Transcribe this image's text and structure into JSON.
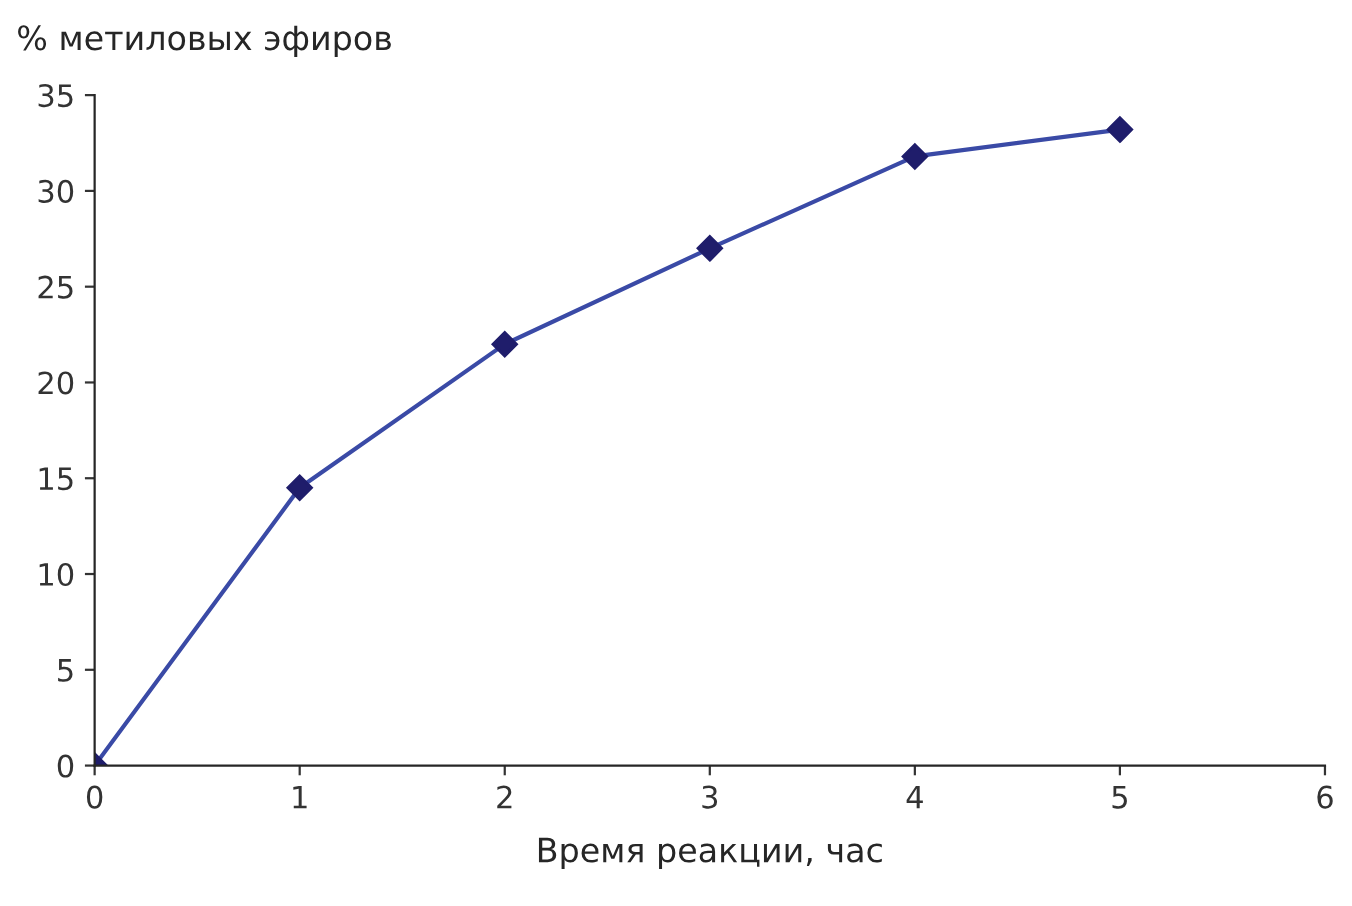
{
  "chart_data": {
    "type": "line",
    "ylabel": "% метиловых эфиров",
    "xlabel": "Время реакции, час",
    "x": [
      0,
      1,
      2,
      3,
      4,
      5
    ],
    "series": [
      {
        "color": "#3a4aa6",
        "values": [
          0,
          14.5,
          22,
          27,
          31.8,
          33.2
        ]
      }
    ],
    "marker": "diamond",
    "line_style": "solid",
    "xlim": [
      0,
      6
    ],
    "xticks": [
      0,
      1,
      2,
      3,
      4,
      5,
      6
    ],
    "ylim": [
      0,
      35
    ],
    "yticks": [
      0,
      5,
      10,
      15,
      20,
      25,
      30,
      35
    ],
    "grid": false,
    "legend": false
  }
}
